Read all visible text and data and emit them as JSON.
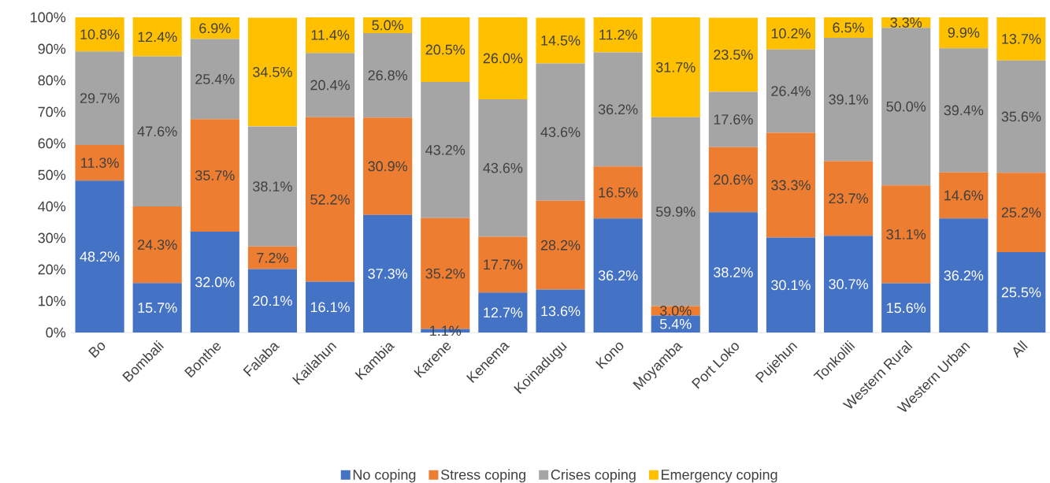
{
  "chart_data": {
    "type": "bar",
    "stacked": true,
    "legend": "bottom",
    "categories": [
      "Bo",
      "Bombali",
      "Bonthe",
      "Falaba",
      "Kailahun",
      "Kambia",
      "Karene",
      "Kenema",
      "Koinadugu",
      "Kono",
      "Moyamba",
      "Port Loko",
      "Pujehun",
      "Tonkolili",
      "Western Rural",
      "Western Urban",
      "All"
    ],
    "ylim": [
      0,
      100
    ],
    "yticks": [
      {
        "value": 0,
        "label": "0%"
      },
      {
        "value": 10,
        "label": "10%"
      },
      {
        "value": 20,
        "label": "20%"
      },
      {
        "value": 30,
        "label": "30%"
      },
      {
        "value": 40,
        "label": "40%"
      },
      {
        "value": 50,
        "label": "50%"
      },
      {
        "value": 60,
        "label": "60%"
      },
      {
        "value": 70,
        "label": "70%"
      },
      {
        "value": 80,
        "label": "80%"
      },
      {
        "value": 90,
        "label": "90%"
      },
      {
        "value": 100,
        "label": "100%"
      }
    ],
    "series": [
      {
        "name": "No coping",
        "color": "#4472c4",
        "values": [
          48.2,
          15.7,
          32.0,
          20.1,
          16.1,
          37.3,
          1.1,
          12.7,
          13.6,
          36.2,
          5.4,
          38.2,
          30.1,
          30.7,
          15.6,
          36.2,
          25.5
        ],
        "value_labels": [
          "48.2%",
          "15.7%",
          "32.0%",
          "20.1%",
          "16.1%",
          "37.3%",
          "1.1%",
          "12.7%",
          "13.6%",
          "36.2%",
          "5.4%",
          "38.2%",
          "30.1%",
          "30.7%",
          "15.6%",
          "36.2%",
          "25.5%"
        ]
      },
      {
        "name": "Stress coping",
        "color": "#ed7d31",
        "values": [
          11.3,
          24.3,
          35.7,
          7.2,
          52.2,
          30.9,
          35.2,
          17.7,
          28.2,
          16.5,
          3.0,
          20.6,
          33.3,
          23.7,
          31.1,
          14.6,
          25.2
        ],
        "value_labels": [
          "11.3%",
          "24.3%",
          "35.7%",
          "7.2%",
          "52.2%",
          "30.9%",
          "35.2%",
          "17.7%",
          "28.2%",
          "16.5%",
          "3.0%",
          "20.6%",
          "33.3%",
          "23.7%",
          "31.1%",
          "14.6%",
          "25.2%"
        ]
      },
      {
        "name": "Crises coping",
        "color": "#a5a5a5",
        "values": [
          29.7,
          47.6,
          25.4,
          38.1,
          20.4,
          26.8,
          43.2,
          43.6,
          43.6,
          36.2,
          59.9,
          17.6,
          26.4,
          39.1,
          50.0,
          39.4,
          35.6
        ],
        "value_labels": [
          "29.7%",
          "47.6%",
          "25.4%",
          "38.1%",
          "20.4%",
          "26.8%",
          "43.2%",
          "43.6%",
          "43.6%",
          "36.2%",
          "59.9%",
          "17.6%",
          "26.4%",
          "39.1%",
          "50.0%",
          "39.4%",
          "35.6%"
        ]
      },
      {
        "name": "Emergency coping",
        "color": "#ffc000",
        "values": [
          10.8,
          12.4,
          6.9,
          34.5,
          11.4,
          5.0,
          20.5,
          26.0,
          14.5,
          11.2,
          31.7,
          23.5,
          10.2,
          6.5,
          3.3,
          9.9,
          13.7
        ],
        "value_labels": [
          "10.8%",
          "12.4%",
          "6.9%",
          "34.5%",
          "11.4%",
          "5.0%",
          "20.5%",
          "26.0%",
          "14.5%",
          "11.2%",
          "31.7%",
          "23.5%",
          "10.2%",
          "6.5%",
          "3.3%",
          "9.9%",
          "13.7%"
        ]
      }
    ]
  }
}
